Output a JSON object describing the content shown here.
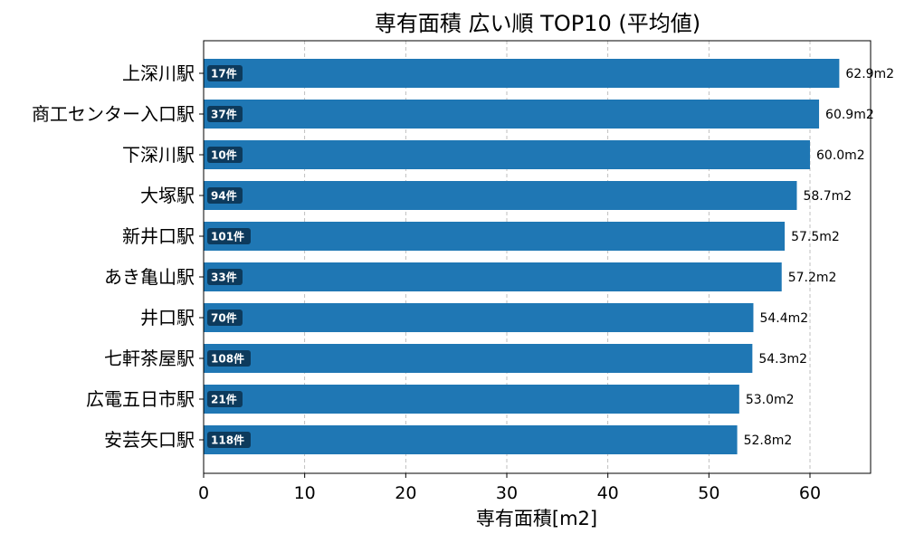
{
  "chart_data": {
    "type": "bar",
    "orientation": "horizontal",
    "title": "専有面積 広い順 TOP10 (平均値)",
    "xlabel": "専有面積[m2]",
    "ylabel": "",
    "xlim": [
      0,
      66
    ],
    "xticks": [
      0,
      10,
      20,
      30,
      40,
      50,
      60
    ],
    "grid": "x-dashed",
    "bar_color": "#1f77b4",
    "badge_color": "#0d3a5c",
    "value_suffix": "m2",
    "categories": [
      "上深川駅",
      "商工センター入口駅",
      "下深川駅",
      "大塚駅",
      "新井口駅",
      "あき亀山駅",
      "井口駅",
      "七軒茶屋駅",
      "広電五日市駅",
      "安芸矢口駅"
    ],
    "values": [
      62.9,
      60.9,
      60.0,
      58.7,
      57.5,
      57.2,
      54.4,
      54.3,
      53.0,
      52.8
    ],
    "value_labels": [
      "62.9m2",
      "60.9m2",
      "60.0m2",
      "58.7m2",
      "57.5m2",
      "57.2m2",
      "54.4m2",
      "54.3m2",
      "53.0m2",
      "52.8m2"
    ],
    "counts": [
      "17件",
      "37件",
      "10件",
      "94件",
      "101件",
      "33件",
      "70件",
      "108件",
      "21件",
      "118件"
    ]
  }
}
